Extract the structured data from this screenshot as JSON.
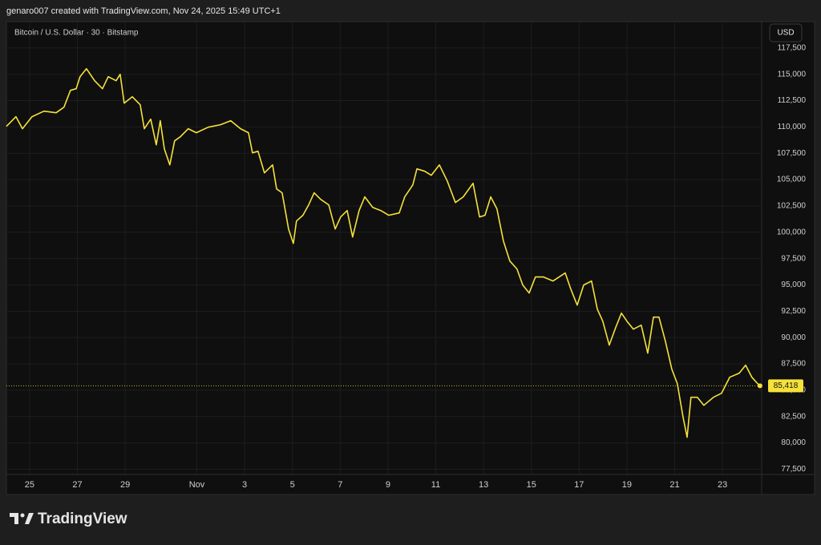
{
  "header": "genaro007 created with TradingView.com, Nov 24, 2025 15:49 UTC+1",
  "branding": "TradingView",
  "chart_data": {
    "type": "line",
    "title": "Bitcoin / U.S. Dollar · 30 · Bitstamp",
    "currency": "USD",
    "color": "#f5e13a",
    "grid": true,
    "x": [
      24.03,
      24.43,
      24.7,
      25.1,
      25.6,
      26.11,
      26.44,
      26.71,
      26.95,
      27.11,
      27.38,
      27.72,
      28.05,
      28.29,
      28.62,
      28.79,
      28.96,
      29.3,
      29.63,
      29.8,
      30.07,
      30.3,
      30.47,
      30.64,
      30.87,
      31.07,
      31.31,
      31.64,
      31.98,
      32.48,
      32.99,
      33.42,
      33.83,
      34.16,
      34.33,
      34.56,
      34.83,
      35.17,
      35.34,
      35.57,
      35.84,
      36.04,
      36.17,
      36.44,
      36.68,
      36.91,
      37.18,
      37.52,
      37.79,
      38.02,
      38.29,
      38.52,
      38.79,
      39.03,
      39.36,
      39.7,
      40.03,
      40.47,
      40.7,
      41.04,
      41.21,
      41.54,
      41.81,
      42.15,
      42.48,
      42.82,
      43.15,
      43.56,
      43.83,
      44.06,
      44.3,
      44.56,
      44.83,
      45.1,
      45.4,
      45.64,
      45.91,
      46.17,
      46.51,
      46.91,
      47.42,
      47.65,
      47.92,
      48.19,
      48.52,
      48.76,
      48.99,
      49.26,
      49.53,
      49.77,
      50.0,
      50.27,
      50.6,
      50.87,
      51.11,
      51.34,
      51.61,
      51.88,
      52.11,
      52.35,
      52.52,
      52.68,
      52.95,
      53.22,
      53.62,
      53.96,
      54.3,
      54.7,
      54.97,
      55.23,
      55.47,
      55.57
    ],
    "values": [
      110050,
      110970,
      109830,
      110970,
      111500,
      111350,
      111880,
      113480,
      113630,
      114770,
      115530,
      114390,
      113630,
      114770,
      114390,
      115000,
      112260,
      112870,
      112110,
      109830,
      110740,
      108300,
      110590,
      107920,
      106400,
      108680,
      109060,
      109830,
      109450,
      109980,
      110210,
      110590,
      109830,
      109450,
      107540,
      107690,
      105640,
      106400,
      104120,
      103740,
      100310,
      98940,
      101070,
      101610,
      102600,
      103740,
      103130,
      102600,
      100310,
      101450,
      102060,
      99550,
      102060,
      103360,
      102370,
      102060,
      101610,
      101830,
      103360,
      104500,
      106020,
      105790,
      105410,
      106400,
      104880,
      102820,
      103360,
      104650,
      101450,
      101610,
      103360,
      102220,
      99170,
      97270,
      96510,
      94990,
      94230,
      95750,
      95750,
      95370,
      96130,
      94610,
      93080,
      94990,
      95370,
      92700,
      91560,
      89280,
      90950,
      92320,
      91560,
      90800,
      91180,
      88520,
      91940,
      91940,
      89660,
      87000,
      85630,
      82430,
      80530,
      84330,
      84330,
      83570,
      84330,
      84710,
      86230,
      86620,
      87380,
      86230,
      85630,
      85418
    ],
    "last_value": {
      "value": 85418,
      "label": "85,418"
    },
    "xlim": [
      24.03,
      55.64
    ],
    "xticks": [
      {
        "value": 25,
        "label": "25"
      },
      {
        "value": 27,
        "label": "27"
      },
      {
        "value": 29,
        "label": "29"
      },
      {
        "value": 32,
        "label": "Nov"
      },
      {
        "value": 34,
        "label": "3"
      },
      {
        "value": 36,
        "label": "5"
      },
      {
        "value": 38,
        "label": "7"
      },
      {
        "value": 40,
        "label": "9"
      },
      {
        "value": 42,
        "label": "11"
      },
      {
        "value": 44,
        "label": "13"
      },
      {
        "value": 46,
        "label": "15"
      },
      {
        "value": 48,
        "label": "17"
      },
      {
        "value": 50,
        "label": "19"
      },
      {
        "value": 52,
        "label": "21"
      },
      {
        "value": 54,
        "label": "23"
      }
    ],
    "ylim": [
      77000,
      120000
    ],
    "yticks": [
      {
        "value": 77500,
        "label": "77,500"
      },
      {
        "value": 80000,
        "label": "80,000"
      },
      {
        "value": 82500,
        "label": "82,500"
      },
      {
        "value": 85000,
        "label": "85,000"
      },
      {
        "value": 87500,
        "label": "87,500"
      },
      {
        "value": 90000,
        "label": "90,000"
      },
      {
        "value": 92500,
        "label": "92,500"
      },
      {
        "value": 95000,
        "label": "95,000"
      },
      {
        "value": 97500,
        "label": "97,500"
      },
      {
        "value": 100000,
        "label": "100,000"
      },
      {
        "value": 102500,
        "label": "102,500"
      },
      {
        "value": 105000,
        "label": "105,000"
      },
      {
        "value": 107500,
        "label": "107,500"
      },
      {
        "value": 110000,
        "label": "110,000"
      },
      {
        "value": 112500,
        "label": "112,500"
      },
      {
        "value": 115000,
        "label": "115,000"
      },
      {
        "value": 117500,
        "label": "117,500"
      }
    ]
  }
}
